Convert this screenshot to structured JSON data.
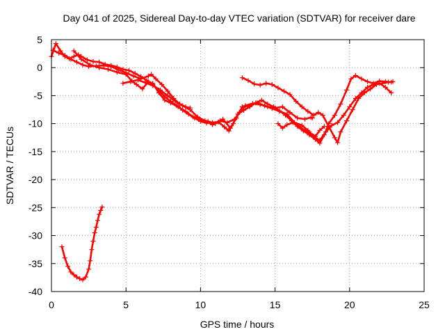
{
  "chart_data": {
    "type": "scatter",
    "title": "Day 041 of 2025, Sidereal Day-to-day VTEC variation (SDTVAR) for receiver dare",
    "xlabel": "GPS time / hours",
    "ylabel": "SDTVAR / TECUs",
    "xlim": [
      0,
      25
    ],
    "ylim": [
      -40,
      5
    ],
    "xticks": [
      0,
      5,
      10,
      15,
      20,
      25
    ],
    "yticks": [
      5,
      0,
      -5,
      -10,
      -15,
      -20,
      -25,
      -30,
      -35,
      -40
    ],
    "grid": true,
    "legend": "none",
    "marker": "plus",
    "series": [
      {
        "name": "SDTVAR track 1",
        "color": "#ff0000",
        "points": [
          [
            0.0,
            2.0
          ],
          [
            0.3,
            4.3
          ],
          [
            0.6,
            3.0
          ],
          [
            0.9,
            2.0
          ],
          [
            1.2,
            1.6
          ],
          [
            1.5,
            2.0
          ],
          [
            1.8,
            2.3
          ],
          [
            2.0,
            2.0
          ],
          [
            2.4,
            1.4
          ],
          [
            2.8,
            1.1
          ],
          [
            3.2,
            1.0
          ],
          [
            3.6,
            0.6
          ],
          [
            4.0,
            0.4
          ],
          [
            4.4,
            0.1
          ],
          [
            4.8,
            -0.3
          ],
          [
            5.2,
            -0.5
          ],
          [
            5.6,
            -1.0
          ],
          [
            6.0,
            -1.6
          ],
          [
            6.4,
            -2.3
          ],
          [
            6.8,
            -3.0
          ],
          [
            7.2,
            -4.0
          ],
          [
            7.6,
            -5.2
          ],
          [
            8.0,
            -6.0
          ],
          [
            8.4,
            -6.8
          ],
          [
            8.8,
            -7.6
          ],
          [
            9.2,
            -8.3
          ],
          [
            9.6,
            -9.0
          ],
          [
            10.0,
            -9.6
          ],
          [
            10.4,
            -9.9
          ],
          [
            10.8,
            -9.8
          ],
          [
            11.2,
            -9.7
          ],
          [
            11.6,
            -10.6
          ],
          [
            11.9,
            -11.3
          ],
          [
            12.2,
            -10.0
          ],
          [
            12.5,
            -8.3
          ],
          [
            12.9,
            -7.6
          ],
          [
            13.3,
            -7.0
          ],
          [
            13.7,
            -6.3
          ],
          [
            14.1,
            -5.8
          ],
          [
            14.5,
            -6.5
          ],
          [
            14.9,
            -7.0
          ],
          [
            15.3,
            -7.7
          ],
          [
            15.7,
            -8.5
          ],
          [
            16.1,
            -9.5
          ],
          [
            16.5,
            -10.5
          ],
          [
            16.9,
            -11.3
          ],
          [
            17.3,
            -12.0
          ],
          [
            17.7,
            -12.8
          ],
          [
            18.0,
            -13.5
          ],
          [
            18.3,
            -12.0
          ],
          [
            18.6,
            -10.0
          ],
          [
            19.0,
            -8.5
          ],
          [
            19.4,
            -6.5
          ],
          [
            19.8,
            -4.0
          ],
          [
            20.1,
            -2.0
          ],
          [
            20.4,
            -1.4
          ],
          [
            20.8,
            -2.0
          ],
          [
            21.2,
            -2.5
          ],
          [
            21.6,
            -2.8
          ],
          [
            22.0,
            -2.4
          ],
          [
            22.4,
            -2.5
          ],
          [
            22.8,
            -2.6
          ]
        ]
      },
      {
        "name": "SDTVAR track 2",
        "color": "#ff0000",
        "points": [
          [
            0.1,
            3.1
          ],
          [
            0.5,
            2.6
          ],
          [
            0.9,
            2.2
          ],
          [
            1.3,
            1.5
          ],
          [
            1.7,
            1.0
          ],
          [
            2.1,
            0.5
          ],
          [
            2.5,
            0.2
          ],
          [
            3.0,
            0.3
          ],
          [
            3.5,
            0.4
          ],
          [
            4.0,
            0.2
          ],
          [
            4.5,
            -0.4
          ],
          [
            5.0,
            -0.9
          ],
          [
            5.5,
            -1.5
          ],
          [
            6.0,
            -2.0
          ],
          [
            6.5,
            -1.5
          ],
          [
            6.7,
            -1.2
          ],
          [
            7.0,
            -2.0
          ],
          [
            7.4,
            -3.0
          ],
          [
            7.8,
            -4.2
          ],
          [
            8.2,
            -5.5
          ],
          [
            8.6,
            -6.5
          ],
          [
            9.0,
            -7.0
          ],
          [
            9.3,
            -7.2
          ]
        ]
      },
      {
        "name": "SDTVAR track 3",
        "color": "#ff0000",
        "points": [
          [
            1.5,
            3.0
          ],
          [
            2.0,
            1.5
          ],
          [
            2.6,
            0.5
          ],
          [
            3.2,
            0.0
          ],
          [
            3.8,
            -0.3
          ],
          [
            4.4,
            -0.8
          ],
          [
            5.0,
            -1.2
          ],
          [
            5.4,
            -2.4
          ],
          [
            5.7,
            -3.0
          ],
          [
            6.1,
            -3.8
          ],
          [
            6.5,
            -2.5
          ],
          [
            6.8,
            -2.8
          ],
          [
            7.2,
            -4.5
          ],
          [
            7.6,
            -5.8
          ],
          [
            8.0,
            -6.3
          ],
          [
            8.5,
            -7.0
          ],
          [
            9.0,
            -7.8
          ],
          [
            9.5,
            -8.8
          ],
          [
            10.0,
            -9.3
          ],
          [
            10.5,
            -9.6
          ],
          [
            11.0,
            -10.0
          ],
          [
            11.5,
            -9.2
          ],
          [
            12.0,
            -10.8
          ],
          [
            12.4,
            -9.0
          ],
          [
            12.8,
            -7.0
          ],
          [
            13.3,
            -6.8
          ],
          [
            13.8,
            -6.3
          ],
          [
            14.3,
            -6.8
          ],
          [
            14.8,
            -7.3
          ],
          [
            15.3,
            -7.8
          ],
          [
            15.8,
            -8.3
          ],
          [
            16.3,
            -9.8
          ],
          [
            16.8,
            -10.3
          ],
          [
            17.2,
            -11.2
          ],
          [
            17.6,
            -12.3
          ],
          [
            18.0,
            -13.0
          ],
          [
            18.4,
            -11.5
          ],
          [
            18.8,
            -10.3
          ],
          [
            19.2,
            -9.8
          ],
          [
            19.6,
            -8.5
          ],
          [
            20.0,
            -7.0
          ],
          [
            20.4,
            -5.5
          ],
          [
            20.8,
            -4.5
          ],
          [
            21.2,
            -3.5
          ],
          [
            21.6,
            -3.0
          ],
          [
            22.0,
            -2.8
          ],
          [
            22.4,
            -3.5
          ],
          [
            22.8,
            -4.5
          ]
        ]
      },
      {
        "name": "SDTVAR track 4",
        "color": "#ff0000",
        "points": [
          [
            4.8,
            -2.8
          ],
          [
            5.3,
            -2.5
          ],
          [
            5.8,
            -2.2
          ],
          [
            6.3,
            -2.7
          ],
          [
            6.8,
            -3.2
          ],
          [
            7.3,
            -4.0
          ],
          [
            7.8,
            -5.0
          ],
          [
            8.3,
            -6.0
          ],
          [
            8.8,
            -6.8
          ],
          [
            9.3,
            -7.5
          ],
          [
            9.8,
            -8.8
          ],
          [
            10.3,
            -9.5
          ],
          [
            10.8,
            -10.2
          ],
          [
            11.3,
            -9.5
          ],
          [
            11.8,
            -9.8
          ],
          [
            12.3,
            -9.2
          ],
          [
            12.6,
            -8.0
          ],
          [
            13.0,
            -6.8
          ],
          [
            13.5,
            -6.4
          ],
          [
            14.0,
            -6.6
          ],
          [
            14.5,
            -7.0
          ],
          [
            15.0,
            -7.2
          ],
          [
            15.5,
            -7.0
          ],
          [
            16.0,
            -8.0
          ],
          [
            16.5,
            -9.0
          ],
          [
            17.0,
            -9.2
          ],
          [
            17.4,
            -8.9
          ],
          [
            17.5,
            -9.0
          ]
        ]
      },
      {
        "name": "SDTVAR track 5",
        "color": "#ff0000",
        "points": [
          [
            12.8,
            -1.8
          ],
          [
            13.2,
            -2.3
          ],
          [
            13.6,
            -2.9
          ],
          [
            14.0,
            -3.1
          ],
          [
            14.4,
            -2.8
          ],
          [
            14.8,
            -3.0
          ],
          [
            15.2,
            -3.6
          ],
          [
            15.6,
            -4.2
          ],
          [
            16.0,
            -4.8
          ],
          [
            16.4,
            -6.0
          ],
          [
            16.8,
            -7.0
          ],
          [
            17.2,
            -7.8
          ],
          [
            17.6,
            -8.5
          ],
          [
            17.9,
            -8.0
          ],
          [
            18.2,
            -8.5
          ],
          [
            18.6,
            -10.5
          ],
          [
            19.0,
            -12.5
          ],
          [
            19.2,
            -13.4
          ],
          [
            19.4,
            -11.5
          ],
          [
            19.8,
            -9.5
          ],
          [
            20.2,
            -7.5
          ],
          [
            20.6,
            -5.5
          ],
          [
            21.0,
            -4.5
          ],
          [
            21.4,
            -3.8
          ],
          [
            21.8,
            -3.0
          ],
          [
            22.2,
            -2.8
          ],
          [
            22.6,
            -2.6
          ],
          [
            22.9,
            -2.5
          ]
        ]
      },
      {
        "name": "SDTVAR track 6",
        "color": "#ff0000",
        "points": [
          [
            15.2,
            -10.0
          ],
          [
            15.5,
            -10.8
          ],
          [
            15.8,
            -10.2
          ],
          [
            16.2,
            -9.8
          ],
          [
            16.6,
            -10.5
          ],
          [
            17.0,
            -11.2
          ],
          [
            17.4,
            -11.8
          ],
          [
            17.7,
            -12.3
          ],
          [
            18.0,
            -11.2
          ],
          [
            18.3,
            -10.5
          ]
        ]
      },
      {
        "name": "SDTVAR track 7",
        "color": "#ff0000",
        "points": [
          [
            0.7,
            -32.0
          ],
          [
            0.9,
            -34.0
          ],
          [
            1.1,
            -35.5
          ],
          [
            1.3,
            -36.5
          ],
          [
            1.5,
            -37.0
          ],
          [
            1.7,
            -37.4
          ],
          [
            1.9,
            -37.7
          ],
          [
            2.1,
            -37.9
          ],
          [
            2.3,
            -37.4
          ],
          [
            2.5,
            -36.0
          ],
          [
            2.6,
            -34.5
          ],
          [
            2.7,
            -32.5
          ],
          [
            2.8,
            -31.0
          ],
          [
            2.9,
            -29.5
          ],
          [
            3.0,
            -28.5
          ],
          [
            3.1,
            -27.3
          ],
          [
            3.2,
            -26.2
          ],
          [
            3.3,
            -25.5
          ],
          [
            3.4,
            -24.9
          ]
        ]
      }
    ]
  }
}
